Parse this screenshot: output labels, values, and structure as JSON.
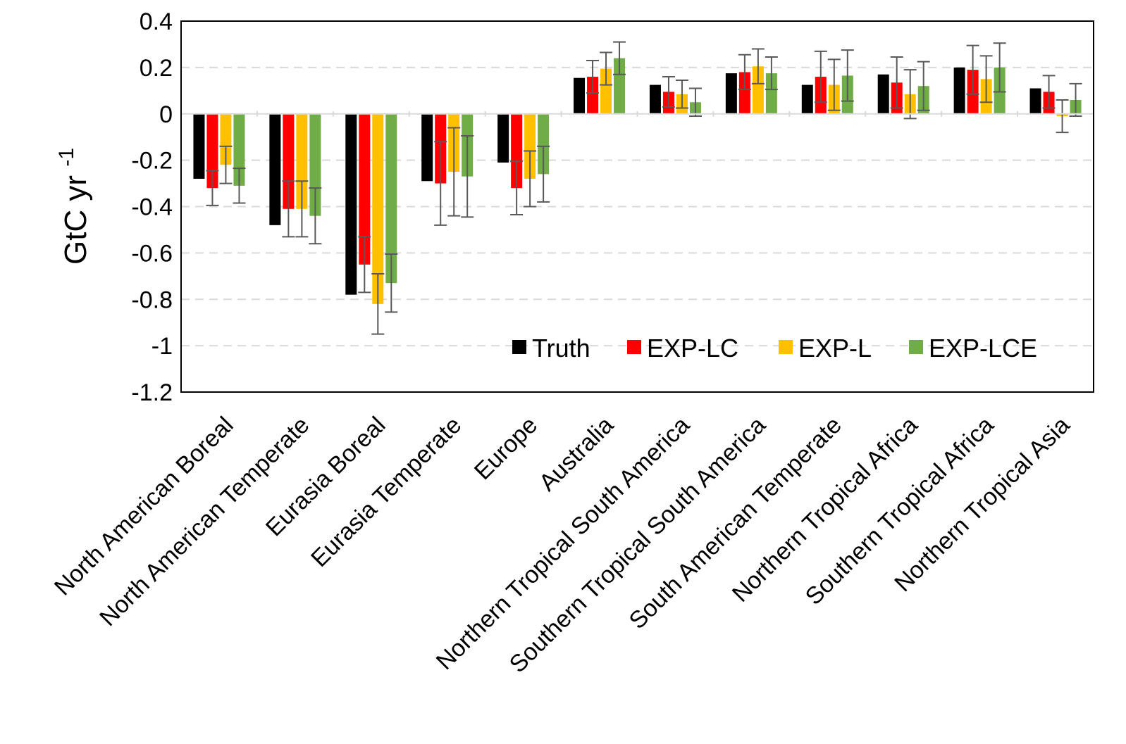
{
  "chart_data": {
    "type": "bar",
    "ylabel": "GtC yr",
    "ylabel_superscript": "-1",
    "ylim": [
      -1.2,
      0.4
    ],
    "yticks": [
      0.4,
      0.2,
      0,
      -0.2,
      -0.4,
      -0.6,
      -0.8,
      -1,
      -1.2
    ],
    "ytick_labels": [
      "0.4",
      "0.2",
      "0",
      "-0.2",
      "-0.4",
      "-0.6",
      "-0.8",
      "-1",
      "-1.2"
    ],
    "grid": "horizontal dashed",
    "legend_position": "bottom-right",
    "categories": [
      "North American Boreal",
      "North American Temperate",
      "Eurasia Boreal",
      "Eurasia Temperate",
      "Europe",
      "Australia",
      "Northern Tropical South America",
      "Southern Tropical South America",
      "South American Temperate",
      "Northern Tropical Africa",
      "Southern Tropical Africa",
      "Northern Tropical Asia"
    ],
    "series": [
      {
        "name": "Truth",
        "color": "#000000",
        "values": [
          -0.28,
          -0.48,
          -0.78,
          -0.29,
          -0.21,
          0.155,
          0.125,
          0.175,
          0.125,
          0.17,
          0.2,
          0.11
        ],
        "errors": null
      },
      {
        "name": "EXP-LC",
        "color": "#ff0000",
        "values": [
          -0.32,
          -0.41,
          -0.65,
          -0.3,
          -0.32,
          0.16,
          0.095,
          0.18,
          0.16,
          0.135,
          0.19,
          0.095
        ],
        "errors": [
          0.075,
          0.12,
          0.12,
          0.18,
          0.115,
          0.07,
          0.065,
          0.075,
          0.11,
          0.11,
          0.105,
          0.07
        ]
      },
      {
        "name": "EXP-L",
        "color": "#ffc000",
        "values": [
          -0.22,
          -0.41,
          -0.82,
          -0.25,
          -0.28,
          0.195,
          0.085,
          0.205,
          0.125,
          0.085,
          0.15,
          -0.01
        ],
        "errors": [
          0.08,
          0.12,
          0.13,
          0.19,
          0.12,
          0.07,
          0.06,
          0.075,
          0.11,
          0.105,
          0.1,
          0.07
        ]
      },
      {
        "name": "EXP-LCE",
        "color": "#70ad47",
        "values": [
          -0.31,
          -0.44,
          -0.73,
          -0.27,
          -0.26,
          0.24,
          0.05,
          0.175,
          0.165,
          0.12,
          0.2,
          0.06
        ],
        "errors": [
          0.075,
          0.12,
          0.125,
          0.175,
          0.12,
          0.07,
          0.06,
          0.07,
          0.11,
          0.105,
          0.105,
          0.07
        ]
      }
    ]
  },
  "colors": {
    "background": "#ffffff",
    "axis": "#000000",
    "grid": "#d9d9d9",
    "error_bar": "#595959"
  }
}
